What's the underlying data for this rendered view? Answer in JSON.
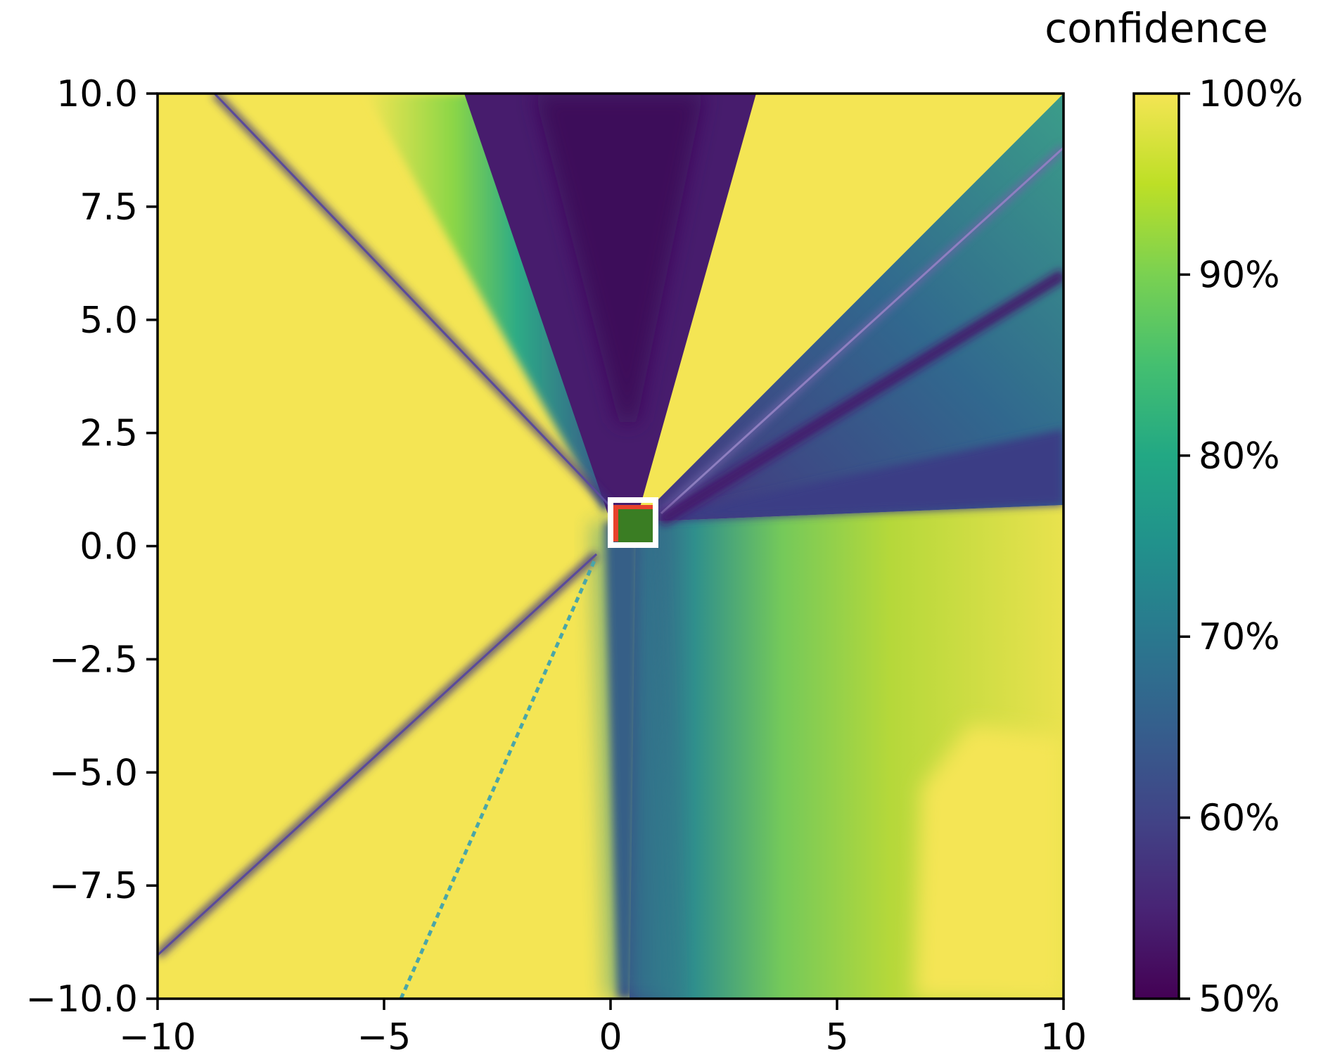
{
  "chart_data": {
    "type": "heatmap",
    "title": "",
    "xlabel": "",
    "ylabel": "",
    "xlim": [
      -10,
      10
    ],
    "ylim": [
      -10,
      10
    ],
    "x_ticks": [
      {
        "value": -10,
        "label": "−10"
      },
      {
        "value": -5,
        "label": "−5"
      },
      {
        "value": 0,
        "label": "0"
      },
      {
        "value": 5,
        "label": "5"
      },
      {
        "value": 10,
        "label": "10"
      }
    ],
    "y_ticks": [
      {
        "value": 10,
        "label": "10.0"
      },
      {
        "value": 7.5,
        "label": "7.5"
      },
      {
        "value": 5,
        "label": "5.0"
      },
      {
        "value": 2.5,
        "label": "2.5"
      },
      {
        "value": 0,
        "label": "0.0"
      },
      {
        "value": -2.5,
        "label": "−2.5"
      },
      {
        "value": -5,
        "label": "−5.0"
      },
      {
        "value": -7.5,
        "label": "−7.5"
      },
      {
        "value": -10,
        "label": "−10.0"
      }
    ],
    "colorbar": {
      "title": "confidence",
      "range": [
        50,
        100
      ],
      "colormap": "viridis",
      "ticks": [
        {
          "value": 100,
          "label": "100%"
        },
        {
          "value": 90,
          "label": "90%"
        },
        {
          "value": 80,
          "label": "80%"
        },
        {
          "value": 70,
          "label": "70%"
        },
        {
          "value": 60,
          "label": "60%"
        },
        {
          "value": 50,
          "label": "50%"
        }
      ]
    },
    "grid": false,
    "regions": [
      {
        "name": "left",
        "confidence": 99
      },
      {
        "name": "top-center",
        "confidence": 51
      },
      {
        "name": "upper-right",
        "confidence": 68
      },
      {
        "name": "lower-right",
        "confidence": 94
      }
    ],
    "highlight_box": {
      "x": [
        0,
        1
      ],
      "y": [
        0,
        1
      ]
    },
    "colors": {
      "box_outline": "#ffffff",
      "inner_patch": "#3a7d23",
      "inner_edge": "#e8412c"
    }
  }
}
